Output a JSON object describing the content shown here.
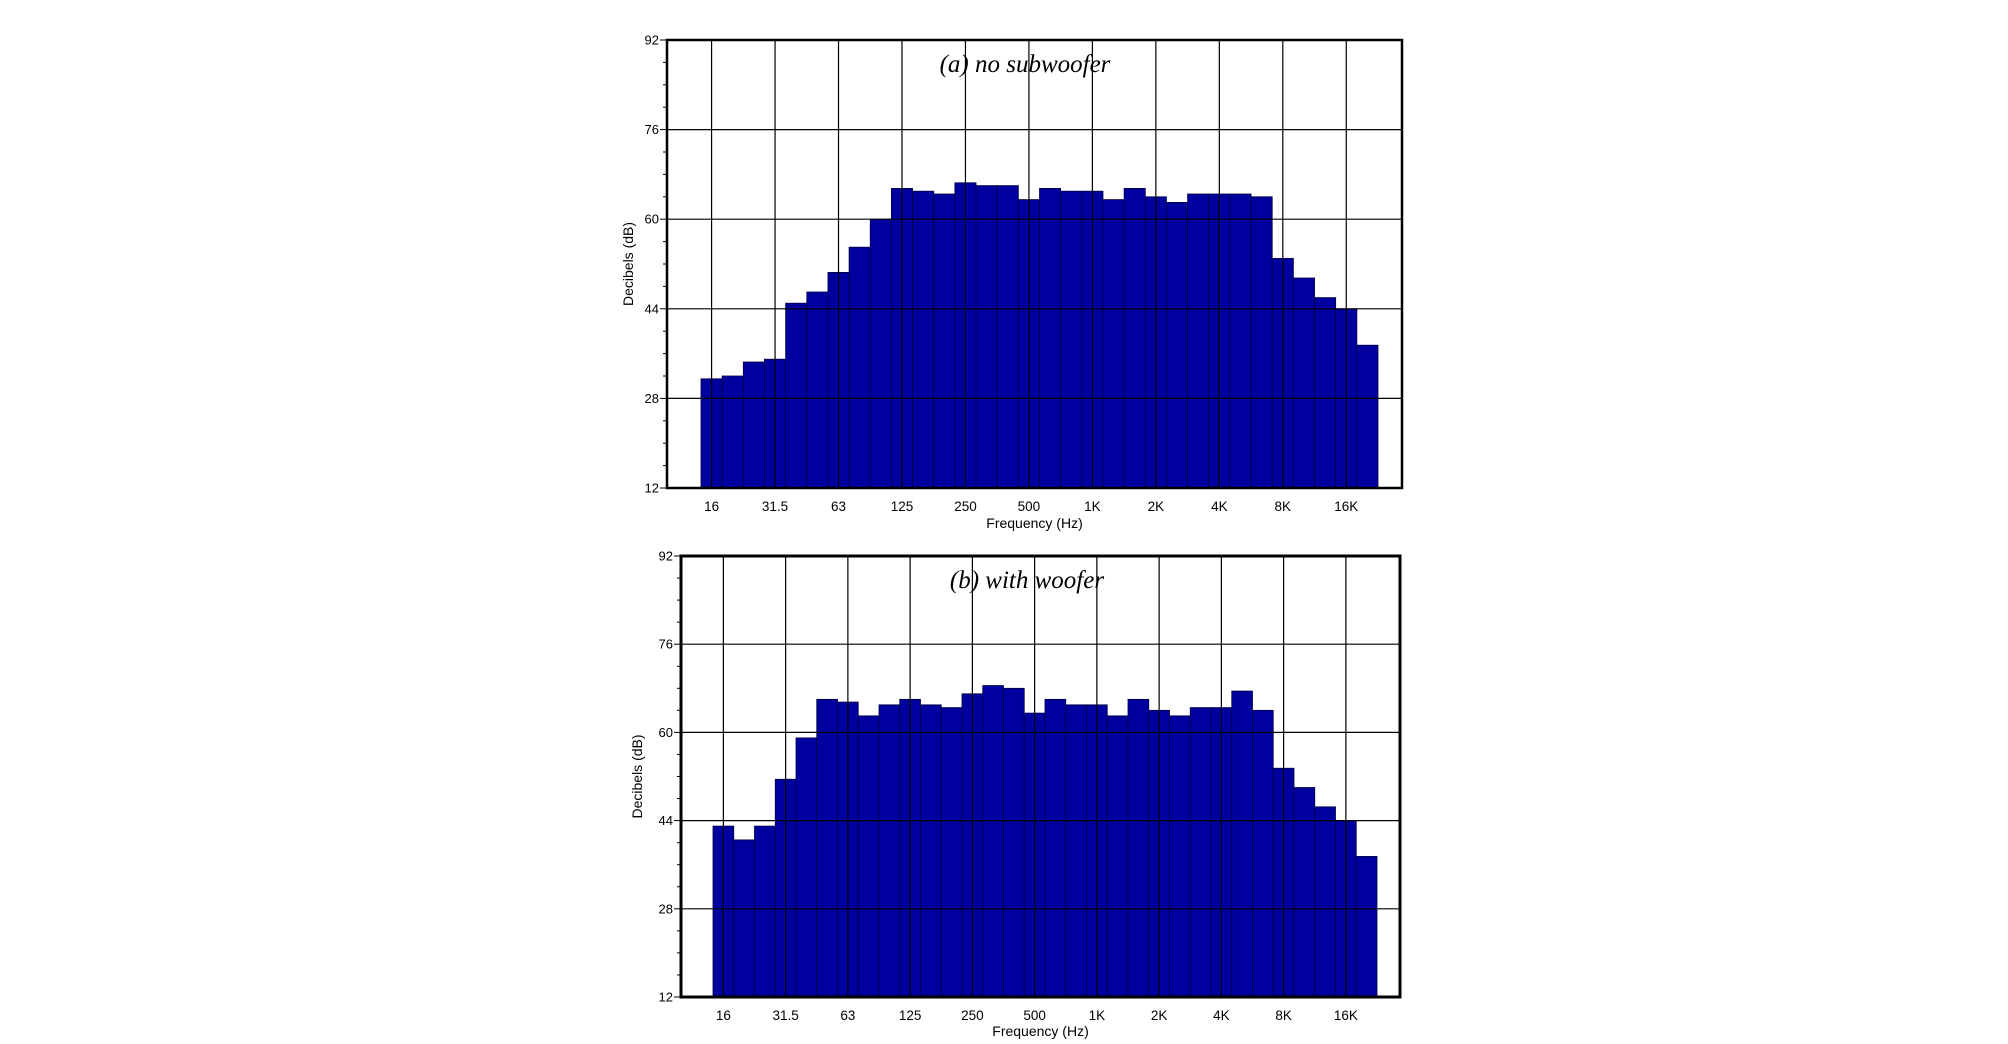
{
  "colors": {
    "bar": "#00009e",
    "bar_edge": "#000040",
    "grid": "#000000",
    "background": "#ffffff"
  },
  "chart_data": [
    {
      "type": "bar",
      "title": "(a) no subwoofer",
      "xlabel": "Frequency (Hz)",
      "ylabel": "Decibels (dB)",
      "ylim": [
        12,
        92
      ],
      "y_ticks": [
        12,
        28,
        44,
        60,
        76,
        92
      ],
      "x_tick_labels": [
        "16",
        "31.5",
        "63",
        "125",
        "250",
        "500",
        "1K",
        "2K",
        "4K",
        "8K",
        "16K"
      ],
      "grid": true,
      "categories": [
        "16",
        "20",
        "25",
        "31.5",
        "40",
        "50",
        "63",
        "80",
        "100",
        "125",
        "160",
        "200",
        "250",
        "315",
        "400",
        "500",
        "630",
        "800",
        "1K",
        "1.25K",
        "1.6K",
        "2K",
        "2.5K",
        "3.15K",
        "4K",
        "5K",
        "6.3K",
        "8K",
        "10K",
        "12.5K",
        "16K",
        "20K"
      ],
      "values": [
        31.5,
        32,
        34.5,
        35,
        45,
        47,
        50.5,
        55,
        60,
        65.5,
        65,
        64.5,
        66.5,
        66,
        66,
        63.5,
        65.5,
        65,
        65,
        63.5,
        65.5,
        64,
        63,
        64.5,
        64.5,
        64.5,
        64,
        53,
        49.5,
        46,
        44,
        37.5
      ]
    },
    {
      "type": "bar",
      "title": "(b) with woofer",
      "xlabel": "Frequency (Hz)",
      "ylabel": "Decibels (dB)",
      "ylim": [
        12,
        92
      ],
      "y_ticks": [
        12,
        28,
        44,
        60,
        76,
        92
      ],
      "x_tick_labels": [
        "16",
        "31.5",
        "63",
        "125",
        "250",
        "500",
        "1K",
        "2K",
        "4K",
        "8K",
        "16K"
      ],
      "grid": true,
      "categories": [
        "16",
        "20",
        "25",
        "31.5",
        "40",
        "50",
        "63",
        "80",
        "100",
        "125",
        "160",
        "200",
        "250",
        "315",
        "400",
        "500",
        "630",
        "800",
        "1K",
        "1.25K",
        "1.6K",
        "2K",
        "2.5K",
        "3.15K",
        "4K",
        "5K",
        "6.3K",
        "8K",
        "10K",
        "12.5K",
        "16K",
        "20K"
      ],
      "values": [
        43,
        40.5,
        43,
        51.5,
        59,
        66,
        65.5,
        63,
        65,
        66,
        65,
        64.5,
        67,
        68.5,
        68,
        63.5,
        66,
        65,
        65,
        63,
        66,
        64,
        63,
        64.5,
        64.5,
        67.5,
        64,
        53.5,
        50,
        46.5,
        44,
        37.5
      ]
    }
  ]
}
